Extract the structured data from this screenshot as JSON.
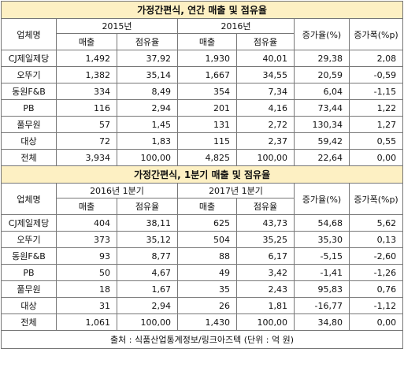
{
  "tables": [
    {
      "title": "가정간편식, 연간 매출 및 점유율",
      "col_company": "업체명",
      "period_a": "2015년",
      "period_b": "2016년",
      "col_sales": "매출",
      "col_share": "점유율",
      "col_growth_rate": "증가율(%)",
      "col_growth_pp": "증가폭(%p)",
      "rows": [
        {
          "name": "CJ제일제당",
          "a_sales": "1,492",
          "a_share": "37,92",
          "b_sales": "1,930",
          "b_share": "40,01",
          "rate": "29,38",
          "pp": "2,08"
        },
        {
          "name": "오뚜기",
          "a_sales": "1,382",
          "a_share": "35,14",
          "b_sales": "1,667",
          "b_share": "34,55",
          "rate": "20,59",
          "pp": "-0,59"
        },
        {
          "name": "동원F&B",
          "a_sales": "334",
          "a_share": "8,49",
          "b_sales": "354",
          "b_share": "7,34",
          "rate": "6,04",
          "pp": "-1,15"
        },
        {
          "name": "PB",
          "a_sales": "116",
          "a_share": "2,94",
          "b_sales": "201",
          "b_share": "4,16",
          "rate": "73,44",
          "pp": "1,22"
        },
        {
          "name": "풀무원",
          "a_sales": "57",
          "a_share": "1,45",
          "b_sales": "131",
          "b_share": "2,72",
          "rate": "130,34",
          "pp": "1,27"
        },
        {
          "name": "대상",
          "a_sales": "72",
          "a_share": "1,83",
          "b_sales": "115",
          "b_share": "2,37",
          "rate": "59,42",
          "pp": "0,55"
        },
        {
          "name": "전체",
          "a_sales": "3,934",
          "a_share": "100,00",
          "b_sales": "4,825",
          "b_share": "100,00",
          "rate": "22,64",
          "pp": "0,00"
        }
      ]
    },
    {
      "title": "가정간편식, 1분기 매출 및 점유율",
      "col_company": "업체명",
      "period_a": "2016년 1분기",
      "period_b": "2017년 1분기",
      "col_sales": "매출",
      "col_share": "점유율",
      "col_growth_rate": "증가율(%)",
      "col_growth_pp": "증가폭(%p)",
      "rows": [
        {
          "name": "CJ제일제당",
          "a_sales": "404",
          "a_share": "38,11",
          "b_sales": "625",
          "b_share": "43,73",
          "rate": "54,68",
          "pp": "5,62"
        },
        {
          "name": "오뚜기",
          "a_sales": "373",
          "a_share": "35,12",
          "b_sales": "504",
          "b_share": "35,25",
          "rate": "35,30",
          "pp": "0,13"
        },
        {
          "name": "동원F&B",
          "a_sales": "93",
          "a_share": "8,77",
          "b_sales": "88",
          "b_share": "6,17",
          "rate": "-5,15",
          "pp": "-2,60"
        },
        {
          "name": "PB",
          "a_sales": "50",
          "a_share": "4,67",
          "b_sales": "49",
          "b_share": "3,42",
          "rate": "-1,41",
          "pp": "-1,26"
        },
        {
          "name": "풀무원",
          "a_sales": "18",
          "a_share": "1,67",
          "b_sales": "35",
          "b_share": "2,43",
          "rate": "95,83",
          "pp": "0,76"
        },
        {
          "name": "대상",
          "a_sales": "31",
          "a_share": "2,94",
          "b_sales": "26",
          "b_share": "1,81",
          "rate": "-16,77",
          "pp": "-1,12"
        },
        {
          "name": "전체",
          "a_sales": "1,061",
          "a_share": "100,00",
          "b_sales": "1,430",
          "b_share": "100,00",
          "rate": "34,80",
          "pp": "0,00"
        }
      ]
    }
  ],
  "footer": "출처 : 식품산업통계정보/링크아즈텍 (단위 : 억 원)",
  "colors": {
    "title_background": "#fdf0c3",
    "border": "#777777"
  }
}
